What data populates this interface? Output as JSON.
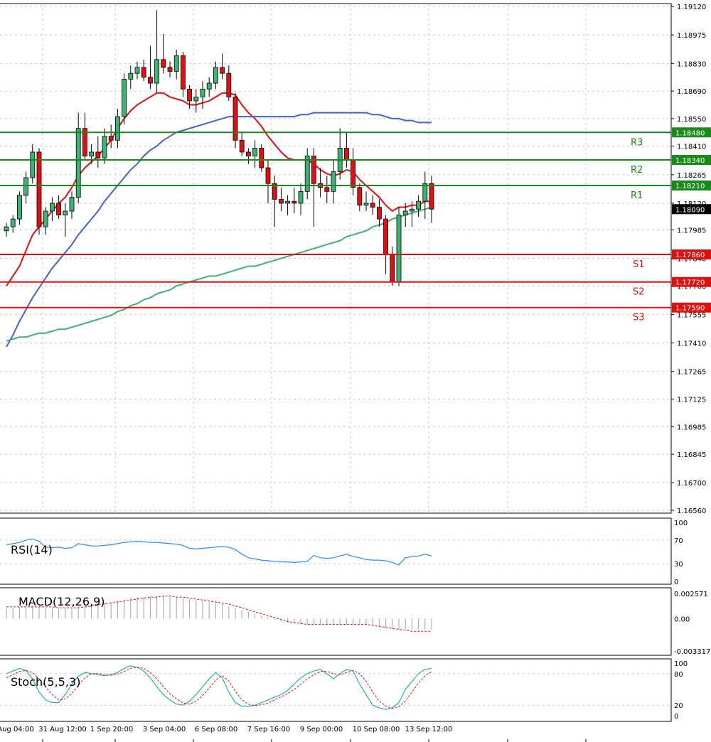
{
  "chart_data": {
    "type": "candlestick",
    "price_panel": {
      "ylim": [
        1.1656,
        1.1912
      ],
      "y_ticks": [
        "1.19120",
        "1.18975",
        "1.18830",
        "1.18690",
        "1.18550",
        "1.18410",
        "1.18265",
        "1.18120",
        "1.17985",
        "1.17840",
        "1.17700",
        "1.17555",
        "1.17410",
        "1.17265",
        "1.17125",
        "1.16985",
        "1.16845",
        "1.16700",
        "1.16560"
      ],
      "current_price": "1.18090",
      "x_ticks": [
        "Aug 04:00",
        "31 Aug 12:00",
        "1 Sep 20:00",
        "3 Sep 04:00",
        "6 Sep 08:00",
        "7 Sep 16:00",
        "9 Sep 00:00",
        "10 Sep 08:00",
        "13 Sep 12:00"
      ],
      "levels": [
        {
          "name": "R3",
          "value": 1.1848,
          "label": "1.18480",
          "color": "#1a8a1a"
        },
        {
          "name": "R2",
          "value": 1.1834,
          "label": "1.18340",
          "color": "#1a8a1a"
        },
        {
          "name": "R1",
          "value": 1.1821,
          "label": "1.18210",
          "color": "#1a8a1a"
        },
        {
          "name": "S1",
          "value": 1.1786,
          "label": "1.17860",
          "color": "#e01010"
        },
        {
          "name": "S2",
          "value": 1.1772,
          "label": "1.17720",
          "color": "#e01010"
        },
        {
          "name": "S3",
          "value": 1.1759,
          "label": "1.17590",
          "color": "#e01010"
        }
      ],
      "candles": [
        [
          1.1798,
          1.1802,
          1.1795,
          1.18
        ],
        [
          1.18,
          1.1806,
          1.1797,
          1.1804
        ],
        [
          1.1804,
          1.1818,
          1.1801,
          1.1816
        ],
        [
          1.1816,
          1.1828,
          1.1812,
          1.1825
        ],
        [
          1.1825,
          1.1842,
          1.1822,
          1.1838
        ],
        [
          1.1838,
          1.184,
          1.1796,
          1.18
        ],
        [
          1.18,
          1.181,
          1.1796,
          1.1808
        ],
        [
          1.1808,
          1.1815,
          1.1803,
          1.1812
        ],
        [
          1.1812,
          1.1816,
          1.1804,
          1.1806
        ],
        [
          1.1806,
          1.1812,
          1.1795,
          1.1808
        ],
        [
          1.1808,
          1.1818,
          1.1804,
          1.1815
        ],
        [
          1.1815,
          1.1858,
          1.1812,
          1.185
        ],
        [
          1.185,
          1.1858,
          1.1834,
          1.1836
        ],
        [
          1.1836,
          1.1842,
          1.1832,
          1.1838
        ],
        [
          1.1838,
          1.1846,
          1.183,
          1.1835
        ],
        [
          1.1835,
          1.185,
          1.1832,
          1.1846
        ],
        [
          1.1846,
          1.1852,
          1.184,
          1.1844
        ],
        [
          1.1844,
          1.186,
          1.184,
          1.1856
        ],
        [
          1.1856,
          1.1878,
          1.1852,
          1.1875
        ],
        [
          1.1875,
          1.1882,
          1.187,
          1.1878
        ],
        [
          1.1878,
          1.1884,
          1.1875,
          1.1881
        ],
        [
          1.1881,
          1.1885,
          1.1874,
          1.1876
        ],
        [
          1.1876,
          1.1892,
          1.187,
          1.1873
        ],
        [
          1.1873,
          1.191,
          1.1868,
          1.1885
        ],
        [
          1.1885,
          1.1898,
          1.1878,
          1.1881
        ],
        [
          1.1881,
          1.1884,
          1.1876,
          1.1879
        ],
        [
          1.1879,
          1.189,
          1.1875,
          1.1887
        ],
        [
          1.1887,
          1.1889,
          1.1866,
          1.187
        ],
        [
          1.187,
          1.1872,
          1.186,
          1.1864
        ],
        [
          1.1864,
          1.187,
          1.1858,
          1.1866
        ],
        [
          1.1866,
          1.1874,
          1.186,
          1.187
        ],
        [
          1.187,
          1.1876,
          1.1866,
          1.1873
        ],
        [
          1.1873,
          1.1884,
          1.187,
          1.1881
        ],
        [
          1.1881,
          1.1888,
          1.1875,
          1.1878
        ],
        [
          1.1878,
          1.1882,
          1.1864,
          1.1866
        ],
        [
          1.1866,
          1.1868,
          1.184,
          1.1844
        ],
        [
          1.1844,
          1.1848,
          1.1836,
          1.1838
        ],
        [
          1.1838,
          1.184,
          1.1832,
          1.1836
        ],
        [
          1.1836,
          1.1844,
          1.183,
          1.184
        ],
        [
          1.184,
          1.1842,
          1.1828,
          1.183
        ],
        [
          1.183,
          1.1834,
          1.1812,
          1.1822
        ],
        [
          1.1822,
          1.1826,
          1.18,
          1.1814
        ],
        [
          1.1814,
          1.182,
          1.1808,
          1.1812
        ],
        [
          1.1812,
          1.1816,
          1.1806,
          1.1813
        ],
        [
          1.1813,
          1.182,
          1.1807,
          1.1812
        ],
        [
          1.1812,
          1.1822,
          1.1806,
          1.1818
        ],
        [
          1.1818,
          1.184,
          1.1814,
          1.1836
        ],
        [
          1.1836,
          1.184,
          1.18,
          1.1822
        ],
        [
          1.1822,
          1.183,
          1.1815,
          1.182
        ],
        [
          1.182,
          1.1826,
          1.1812,
          1.1818
        ],
        [
          1.1818,
          1.1834,
          1.1812,
          1.1828
        ],
        [
          1.1828,
          1.185,
          1.1824,
          1.184
        ],
        [
          1.184,
          1.1848,
          1.183,
          1.1834
        ],
        [
          1.1834,
          1.184,
          1.1816,
          1.182
        ],
        [
          1.182,
          1.1822,
          1.1808,
          1.1811
        ],
        [
          1.1811,
          1.1818,
          1.1808,
          1.1812
        ],
        [
          1.1812,
          1.1816,
          1.1806,
          1.181
        ],
        [
          1.181,
          1.1814,
          1.18,
          1.1804
        ],
        [
          1.1804,
          1.1806,
          1.1776,
          1.1786
        ],
        [
          1.1786,
          1.179,
          1.177,
          1.1772
        ],
        [
          1.1772,
          1.181,
          1.177,
          1.1806
        ],
        [
          1.1806,
          1.1812,
          1.18,
          1.1808
        ],
        [
          1.1808,
          1.1813,
          1.18,
          1.1809
        ],
        [
          1.1809,
          1.1816,
          1.1805,
          1.1813
        ],
        [
          1.1813,
          1.1828,
          1.1804,
          1.1822
        ],
        [
          1.1822,
          1.1826,
          1.1802,
          1.1809
        ]
      ],
      "series": [
        {
          "name": "",
          "color": "#e01010",
          "values": [
            1.177,
            1.1775,
            1.178,
            1.1788,
            1.1796,
            1.18,
            1.1804,
            1.1808,
            1.1812,
            1.1815,
            1.182,
            1.1826,
            1.183,
            1.1833,
            1.1836,
            1.184,
            1.1844,
            1.185,
            1.1855,
            1.1859,
            1.1862,
            1.1864,
            1.1866,
            1.1868,
            1.1868,
            1.1866,
            1.1865,
            1.1864,
            1.1862,
            1.1862,
            1.1863,
            1.1864,
            1.1866,
            1.1868,
            1.1868,
            1.1867,
            1.1862,
            1.1858,
            1.1855,
            1.1851,
            1.1846,
            1.1842,
            1.1838,
            1.1835,
            1.1834,
            1.1834,
            1.1834,
            1.1832,
            1.1829,
            1.1827,
            1.1826,
            1.1827,
            1.1829,
            1.1828,
            1.1824,
            1.1821,
            1.1818,
            1.1815,
            1.1811,
            1.1808,
            1.181,
            1.181,
            1.1811,
            1.1811,
            1.1813,
            1.1813
          ]
        },
        {
          "name": "",
          "color": "#3f63c8",
          "values": [
            1.1739,
            1.1745,
            1.1752,
            1.1758,
            1.1764,
            1.1769,
            1.1774,
            1.1779,
            1.1783,
            1.1787,
            1.1791,
            1.1796,
            1.18,
            1.1804,
            1.1808,
            1.1813,
            1.1817,
            1.1821,
            1.1825,
            1.1829,
            1.1832,
            1.1836,
            1.1839,
            1.1841,
            1.1844,
            1.1846,
            1.1848,
            1.1849,
            1.185,
            1.1851,
            1.1852,
            1.1853,
            1.1854,
            1.1855,
            1.1856,
            1.1856,
            1.1856,
            1.1856,
            1.1856,
            1.1856,
            1.1856,
            1.1856,
            1.1856,
            1.1856,
            1.1856,
            1.1857,
            1.1857,
            1.1858,
            1.1858,
            1.1858,
            1.1858,
            1.1858,
            1.1858,
            1.1858,
            1.1858,
            1.1858,
            1.1857,
            1.1857,
            1.1856,
            1.1855,
            1.1855,
            1.1854,
            1.1854,
            1.1853,
            1.1853,
            1.1853
          ]
        },
        {
          "name": "",
          "color": "#3cb371",
          "values": [
            1.1742,
            1.1743,
            1.1744,
            1.1744,
            1.1745,
            1.1746,
            1.1746,
            1.1747,
            1.1748,
            1.1748,
            1.1749,
            1.175,
            1.1751,
            1.1752,
            1.1753,
            1.1754,
            1.1755,
            1.1757,
            1.1758,
            1.176,
            1.1761,
            1.1763,
            1.1764,
            1.1766,
            1.1767,
            1.1768,
            1.177,
            1.1771,
            1.1772,
            1.1773,
            1.1774,
            1.1775,
            1.1775,
            1.1776,
            1.1777,
            1.1778,
            1.1779,
            1.178,
            1.178,
            1.1781,
            1.1782,
            1.1783,
            1.1784,
            1.1785,
            1.1786,
            1.1787,
            1.1788,
            1.1789,
            1.179,
            1.1791,
            1.1792,
            1.1793,
            1.1795,
            1.1796,
            1.1797,
            1.1798,
            1.18,
            1.1801,
            1.1802,
            1.1804,
            1.1805,
            1.1806,
            1.1807,
            1.1808,
            1.1809,
            1.181
          ]
        }
      ]
    },
    "rsi_panel": {
      "label": "RSI(14)",
      "ylim": [
        0,
        100
      ],
      "y_ticks": [
        "100",
        "70",
        "30",
        "0"
      ],
      "values": [
        62,
        64,
        66,
        70,
        72,
        68,
        58,
        57,
        58,
        56,
        57,
        64,
        62,
        60,
        60,
        61,
        62,
        64,
        66,
        67,
        68,
        67,
        66,
        66,
        65,
        64,
        63,
        61,
        56,
        55,
        56,
        57,
        58,
        59,
        58,
        54,
        46,
        40,
        38,
        36,
        35,
        34,
        33,
        33,
        32,
        33,
        34,
        44,
        40,
        39,
        40,
        43,
        46,
        42,
        40,
        37,
        36,
        36,
        35,
        32,
        28,
        40,
        42,
        43,
        46,
        43
      ]
    },
    "macd_panel": {
      "label": "MACD(12,26,9)",
      "ylim": [
        -0.003317,
        0.002571
      ],
      "y_ticks": [
        "0.002571",
        "0.00",
        "-0.003317"
      ],
      "histogram": [
        0.001,
        0.0011,
        0.0012,
        0.0012,
        0.0013,
        0.0012,
        0.0011,
        0.001,
        0.001,
        0.001,
        0.001,
        0.0012,
        0.0013,
        0.0014,
        0.0015,
        0.0016,
        0.0017,
        0.0018,
        0.002,
        0.0021,
        0.0022,
        0.0022,
        0.0023,
        0.0023,
        0.0023,
        0.0022,
        0.0022,
        0.0021,
        0.002,
        0.0019,
        0.0018,
        0.0017,
        0.0016,
        0.0015,
        0.0013,
        0.0011,
        0.0009,
        0.0007,
        0.0005,
        0.0003,
        0.0001,
        -0.0001,
        -0.0003,
        -0.0004,
        -0.0005,
        -0.0006,
        -0.0006,
        -0.0006,
        -0.0006,
        -0.0006,
        -0.0006,
        -0.0006,
        -0.0006,
        -0.0006,
        -0.0006,
        -0.0006,
        -0.0007,
        -0.0008,
        -0.0009,
        -0.001,
        -0.0011,
        -0.0011,
        -0.0011,
        -0.0011,
        -0.0011,
        -0.0011
      ],
      "signal": [
        0.0012,
        0.0012,
        0.0012,
        0.0012,
        0.0012,
        0.0012,
        0.0012,
        0.0012,
        0.0011,
        0.0011,
        0.0011,
        0.0011,
        0.0012,
        0.0013,
        0.0014,
        0.0015,
        0.0016,
        0.0017,
        0.0018,
        0.0019,
        0.002,
        0.0021,
        0.0022,
        0.0022,
        0.0023,
        0.0023,
        0.0022,
        0.0022,
        0.0021,
        0.002,
        0.0019,
        0.0018,
        0.0017,
        0.0016,
        0.0015,
        0.0013,
        0.0011,
        0.0009,
        0.0007,
        0.0005,
        0.0003,
        0.0001,
        -0.0001,
        -0.0003,
        -0.0004,
        -0.0005,
        -0.0006,
        -0.0006,
        -0.0006,
        -0.0006,
        -0.0006,
        -0.0006,
        -0.0006,
        -0.0006,
        -0.0006,
        -0.0006,
        -0.0007,
        -0.0008,
        -0.0009,
        -0.001,
        -0.0011,
        -0.0012,
        -0.0013,
        -0.0013,
        -0.0013,
        -0.0013
      ]
    },
    "stoch_panel": {
      "label": "Stoch(5,5,3)",
      "ylim": [
        0,
        100
      ],
      "y_ticks": [
        "100",
        "80",
        "20",
        "0"
      ],
      "main": [
        80,
        85,
        90,
        86,
        70,
        45,
        30,
        25,
        25,
        40,
        60,
        75,
        82,
        80,
        78,
        76,
        78,
        82,
        90,
        95,
        92,
        85,
        72,
        55,
        40,
        30,
        22,
        20,
        28,
        40,
        55,
        70,
        82,
        72,
        45,
        25,
        18,
        18,
        20,
        25,
        30,
        35,
        40,
        48,
        60,
        72,
        80,
        85,
        88,
        80,
        70,
        80,
        88,
        85,
        60,
        40,
        20,
        15,
        12,
        15,
        25,
        50,
        65,
        80,
        88,
        90
      ],
      "signal": [
        72,
        78,
        84,
        86,
        82,
        70,
        55,
        40,
        30,
        32,
        42,
        58,
        72,
        80,
        80,
        78,
        77,
        79,
        84,
        90,
        92,
        90,
        82,
        70,
        55,
        42,
        32,
        24,
        22,
        28,
        38,
        52,
        68,
        76,
        66,
        46,
        30,
        22,
        19,
        21,
        24,
        30,
        36,
        42,
        50,
        60,
        70,
        78,
        84,
        84,
        80,
        78,
        82,
        86,
        80,
        65,
        45,
        28,
        18,
        14,
        17,
        28,
        45,
        62,
        76,
        84
      ]
    }
  }
}
